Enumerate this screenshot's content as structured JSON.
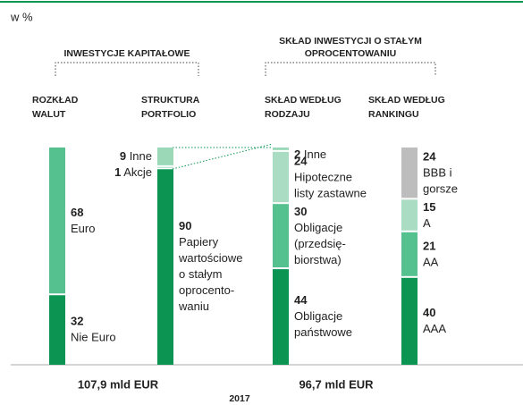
{
  "chart_data": {
    "type": "stacked_bar",
    "unit_label": "w %",
    "year": "2017",
    "ylim": [
      0,
      100
    ],
    "groups": [
      {
        "label_lines": [
          "INWESTYCJE KAPITAŁOWE"
        ],
        "total": "107,9 mld EUR"
      },
      {
        "label_lines": [
          "SKŁAD INWESTYCJI O STAŁYM",
          "OPROCENTOWANIU"
        ],
        "total": "96,7 mld EUR"
      }
    ],
    "columns": [
      {
        "title_lines": [
          "ROZKŁAD",
          "WALUT"
        ],
        "segments": [
          {
            "value": 68,
            "color": "#55c18f",
            "label_lines": [
              "Euro"
            ]
          },
          {
            "value": 32,
            "color": "#0b9452",
            "label_lines": [
              "Nie Euro"
            ]
          }
        ]
      },
      {
        "title_lines": [
          "STRUKTURA",
          "PORTFOLIO"
        ],
        "segments": [
          {
            "value": 9,
            "color": "#9ad8b8",
            "label_lines": [
              "Inne"
            ]
          },
          {
            "value": 1,
            "color": "#55c18f",
            "label_lines": [
              "Akcje"
            ]
          },
          {
            "value": 90,
            "color": "#0b9452",
            "label_lines": [
              "Papiery",
              "wartościowe",
              "o stałym",
              "oprocento-",
              "waniu"
            ]
          }
        ]
      },
      {
        "title_lines": [
          "SKŁAD WEDŁUG",
          "RODZAJU"
        ],
        "segments": [
          {
            "value": 2,
            "color": "#9ad8b8",
            "label_lines": [
              "Inne"
            ]
          },
          {
            "value": 24,
            "color": "#a9dcc2",
            "label_lines": [
              "Hipoteczne",
              "listy zastawne"
            ]
          },
          {
            "value": 30,
            "color": "#55c18f",
            "label_lines": [
              "Obligacje",
              "(przedsię-",
              "biorstwa)"
            ]
          },
          {
            "value": 44,
            "color": "#0b9452",
            "label_lines": [
              "Obligacje",
              "państwowe"
            ]
          }
        ]
      },
      {
        "title_lines": [
          "SKŁAD WEDŁUG",
          "RANKINGU"
        ],
        "segments": [
          {
            "value": 24,
            "color": "#bdbdbd",
            "label_lines": [
              "BBB i",
              "gorsze"
            ]
          },
          {
            "value": 15,
            "color": "#a9dcc2",
            "label_lines": [
              "A"
            ]
          },
          {
            "value": 21,
            "color": "#55c18f",
            "label_lines": [
              "AA"
            ]
          },
          {
            "value": 40,
            "color": "#0b9452",
            "label_lines": [
              "AAA"
            ]
          }
        ]
      }
    ]
  }
}
